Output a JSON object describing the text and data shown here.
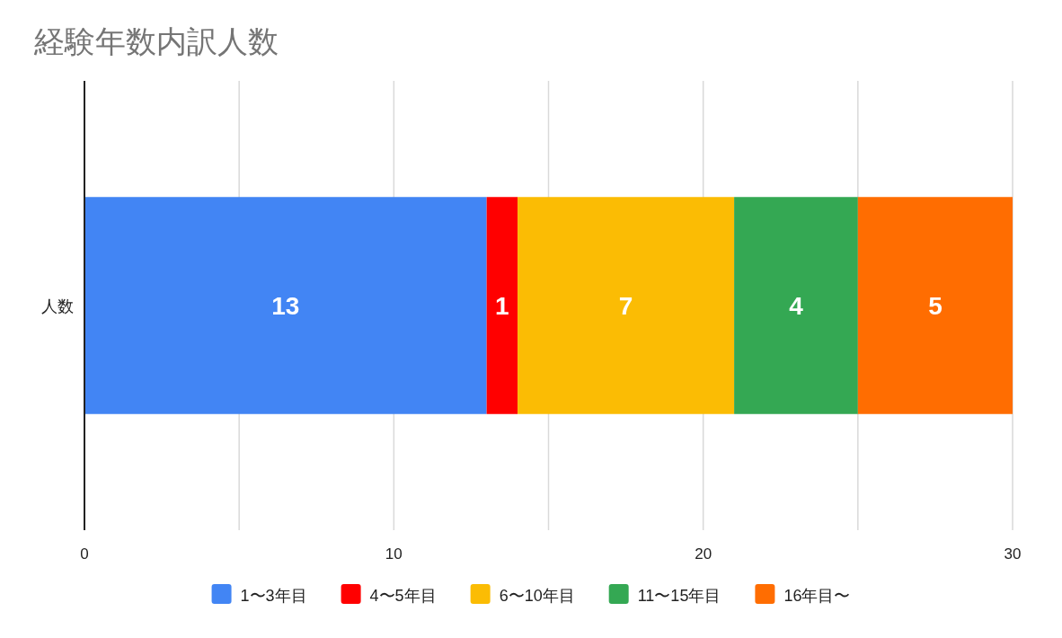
{
  "chart_data": {
    "type": "bar",
    "orientation": "horizontal",
    "stacked": true,
    "title": "経験年数内訳人数",
    "categories": [
      "人数"
    ],
    "series": [
      {
        "name": "1〜3年目",
        "color": "#4285f4",
        "values": [
          13
        ]
      },
      {
        "name": "4〜5年目",
        "color": "#ff0000",
        "values": [
          1
        ]
      },
      {
        "name": "6〜10年目",
        "color": "#fbbc04",
        "values": [
          7
        ]
      },
      {
        "name": "11〜15年目",
        "color": "#34a853",
        "values": [
          4
        ]
      },
      {
        "name": "16年目〜",
        "color": "#ff6d01",
        "values": [
          5
        ]
      }
    ],
    "xlim": [
      0,
      30
    ],
    "xticks": [
      0,
      {
        "value": 5,
        "label": null
      },
      10,
      {
        "value": 15,
        "label": null
      },
      20,
      {
        "value": 25,
        "label": null
      },
      30
    ],
    "grid": "x",
    "legend": "bottom",
    "data_labels": true
  }
}
